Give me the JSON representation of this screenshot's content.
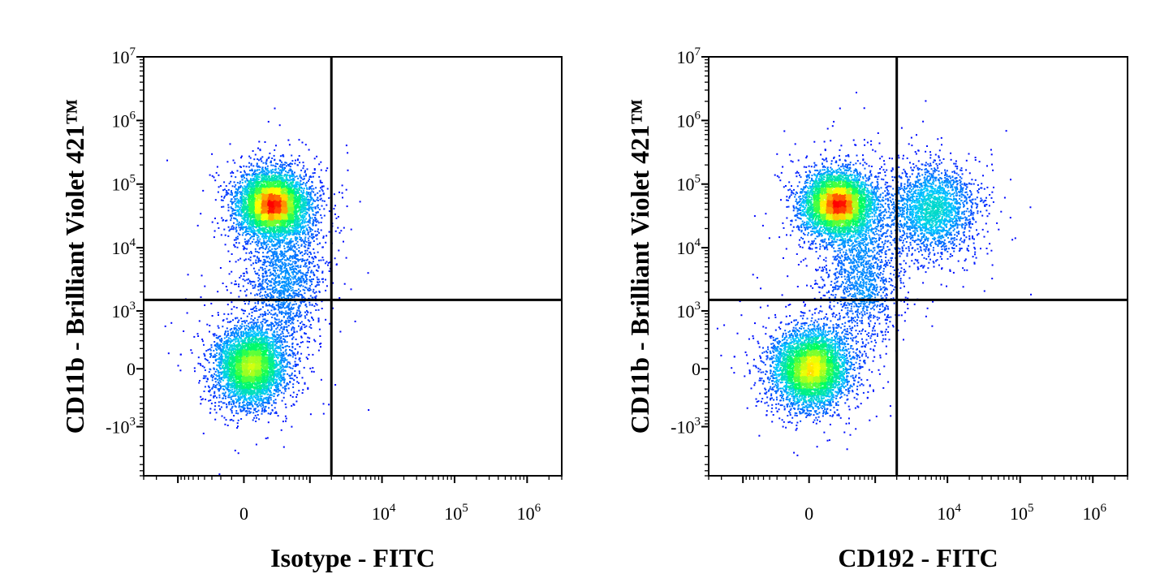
{
  "chart_data": [
    {
      "type": "scatter",
      "subtype": "flow-cytometry-density-dot-plot",
      "title": "",
      "xlabel": "Isotype - FITC",
      "ylabel": "CD11b - Brilliant Violet 421™",
      "x_scale": "biexponential",
      "y_scale": "biexponential",
      "xlim": [
        -3000,
        3000000
      ],
      "ylim": [
        -6000,
        10000000
      ],
      "x_ticks": [
        {
          "label": "0",
          "value": 0
        },
        {
          "label": "10",
          "sup": "4",
          "value": 10000
        },
        {
          "label": "10",
          "sup": "5",
          "value": 100000
        },
        {
          "label": "10",
          "sup": "6",
          "value": 1000000
        }
      ],
      "y_ticks": [
        {
          "label": "-10",
          "sup": "3",
          "value": -1000
        },
        {
          "label": "0",
          "value": 0
        },
        {
          "label": "10",
          "sup": "3",
          "value": 1000
        },
        {
          "label": "10",
          "sup": "4",
          "value": 10000
        },
        {
          "label": "10",
          "sup": "5",
          "value": 100000
        },
        {
          "label": "10",
          "sup": "6",
          "value": 1000000
        },
        {
          "label": "10",
          "sup": "7",
          "value": 10000000
        }
      ],
      "quadrant_gate": {
        "x": 2000,
        "y": 1500
      },
      "populations": [
        {
          "x": 250,
          "y": 50000,
          "count": 5200,
          "sx": 0.55,
          "sy": 0.5
        },
        {
          "x": 50,
          "y": 30,
          "count": 4200,
          "sx": 0.55,
          "sy": 0.6
        },
        {
          "x": 400,
          "y": 3500,
          "count": 1600,
          "sx": 0.6,
          "sy": 1.1
        }
      ],
      "grid": false,
      "legend": "none"
    },
    {
      "type": "scatter",
      "subtype": "flow-cytometry-density-dot-plot",
      "title": "",
      "xlabel": "CD192 - FITC",
      "ylabel": "CD11b - Brilliant Violet 421™",
      "x_scale": "biexponential",
      "y_scale": "biexponential",
      "xlim": [
        -3000,
        3000000
      ],
      "ylim": [
        -6000,
        10000000
      ],
      "x_ticks": [
        {
          "label": "0",
          "value": 0
        },
        {
          "label": "10",
          "sup": "4",
          "value": 10000
        },
        {
          "label": "10",
          "sup": "5",
          "value": 100000
        },
        {
          "label": "10",
          "sup": "6",
          "value": 1000000
        }
      ],
      "y_ticks": [
        {
          "label": "-10",
          "sup": "3",
          "value": -1000
        },
        {
          "label": "0",
          "value": 0
        },
        {
          "label": "10",
          "sup": "3",
          "value": 1000
        },
        {
          "label": "10",
          "sup": "4",
          "value": 10000
        },
        {
          "label": "10",
          "sup": "5",
          "value": 100000
        },
        {
          "label": "10",
          "sup": "6",
          "value": 1000000
        },
        {
          "label": "10",
          "sup": "7",
          "value": 10000000
        }
      ],
      "quadrant_gate": {
        "x": 2000,
        "y": 1500
      },
      "populations": [
        {
          "x": 250,
          "y": 50000,
          "count": 4700,
          "sx": 0.55,
          "sy": 0.5
        },
        {
          "x": 10,
          "y": 10,
          "count": 4600,
          "sx": 0.6,
          "sy": 0.6
        },
        {
          "x": 6000,
          "y": 40000,
          "count": 2200,
          "sx": 0.7,
          "sy": 0.7
        },
        {
          "x": 600,
          "y": 4000,
          "count": 1400,
          "sx": 0.6,
          "sy": 1.1
        }
      ],
      "grid": false,
      "legend": "none"
    }
  ],
  "colors": {
    "low": "#0000ff",
    "mid_low": "#00c8ff",
    "mid": "#00ff60",
    "mid_high": "#ffff00",
    "high": "#ff0000",
    "axis": "#000000"
  }
}
